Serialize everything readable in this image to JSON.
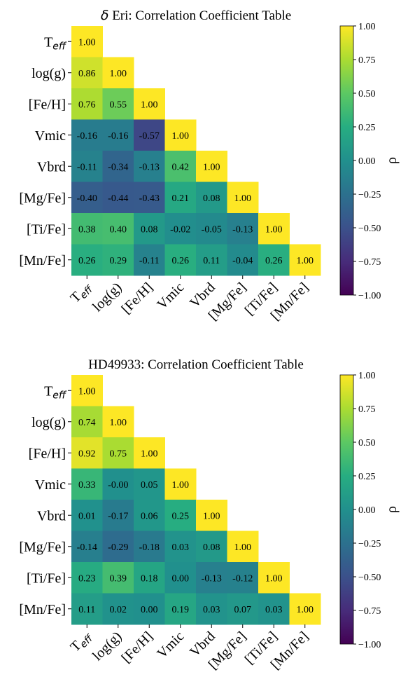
{
  "chart_data": [
    {
      "type": "heatmap",
      "title": "δ Eri: Correlation Coefficient Table",
      "title_symbol": "δ",
      "title_rest": " Eri: Correlation Coefficient Table",
      "row_labels": [
        "T_eff",
        "log(g)",
        "[Fe/H]",
        "Vmic",
        "Vbrd",
        "[Mg/Fe]",
        "[Ti/Fe]",
        "[Mn/Fe]"
      ],
      "col_labels": [
        "T_eff",
        "log(g)",
        "[Fe/H]",
        "Vmic",
        "Vbrd",
        "[Mg/Fe]",
        "[Ti/Fe]",
        "[Mn/Fe]"
      ],
      "matrix_lower_triangle": [
        [
          "1.00"
        ],
        [
          "0.86",
          "1.00"
        ],
        [
          "0.76",
          "0.55",
          "1.00"
        ],
        [
          "-0.16",
          "-0.16",
          "-0.57",
          "1.00"
        ],
        [
          "-0.11",
          "-0.34",
          "-0.13",
          "0.42",
          "1.00"
        ],
        [
          "-0.40",
          "-0.44",
          "-0.43",
          "0.21",
          "0.08",
          "1.00"
        ],
        [
          "0.38",
          "0.40",
          "0.08",
          "-0.02",
          "-0.05",
          "-0.13",
          "1.00"
        ],
        [
          "0.26",
          "0.29",
          "-0.11",
          "0.26",
          "0.11",
          "-0.04",
          "0.26",
          "1.00"
        ]
      ],
      "colorbar": {
        "label": "ρ",
        "range": [
          -1.0,
          1.0
        ],
        "ticks": [
          "1.00",
          "0.75",
          "0.50",
          "0.25",
          "0.00",
          "−0.25",
          "−0.50",
          "−0.75",
          "−1.00"
        ],
        "colormap": "viridis"
      }
    },
    {
      "type": "heatmap",
      "title": "HD49933: Correlation Coefficient Table",
      "title_symbol": "",
      "title_rest": "HD49933: Correlation Coefficient Table",
      "row_labels": [
        "T_eff",
        "log(g)",
        "[Fe/H]",
        "Vmic",
        "Vbrd",
        "[Mg/Fe]",
        "[Ti/Fe]",
        "[Mn/Fe]"
      ],
      "col_labels": [
        "T_eff",
        "log(g)",
        "[Fe/H]",
        "Vmic",
        "Vbrd",
        "[Mg/Fe]",
        "[Ti/Fe]",
        "[Mn/Fe]"
      ],
      "matrix_lower_triangle": [
        [
          "1.00"
        ],
        [
          "0.74",
          "1.00"
        ],
        [
          "0.92",
          "0.75",
          "1.00"
        ],
        [
          "0.33",
          "-0.00",
          "0.05",
          "1.00"
        ],
        [
          "0.01",
          "-0.17",
          "0.06",
          "0.25",
          "1.00"
        ],
        [
          "-0.14",
          "-0.29",
          "-0.18",
          "0.03",
          "0.08",
          "1.00"
        ],
        [
          "0.23",
          "0.39",
          "0.18",
          "0.00",
          "-0.13",
          "-0.12",
          "1.00"
        ],
        [
          "0.11",
          "0.02",
          "0.00",
          "0.19",
          "0.03",
          "0.07",
          "0.03",
          "1.00"
        ]
      ],
      "colorbar": {
        "label": "ρ",
        "range": [
          -1.0,
          1.0
        ],
        "ticks": [
          "1.00",
          "0.75",
          "0.50",
          "0.25",
          "0.00",
          "−0.25",
          "−0.50",
          "−0.75",
          "−1.00"
        ],
        "colormap": "viridis"
      }
    }
  ]
}
